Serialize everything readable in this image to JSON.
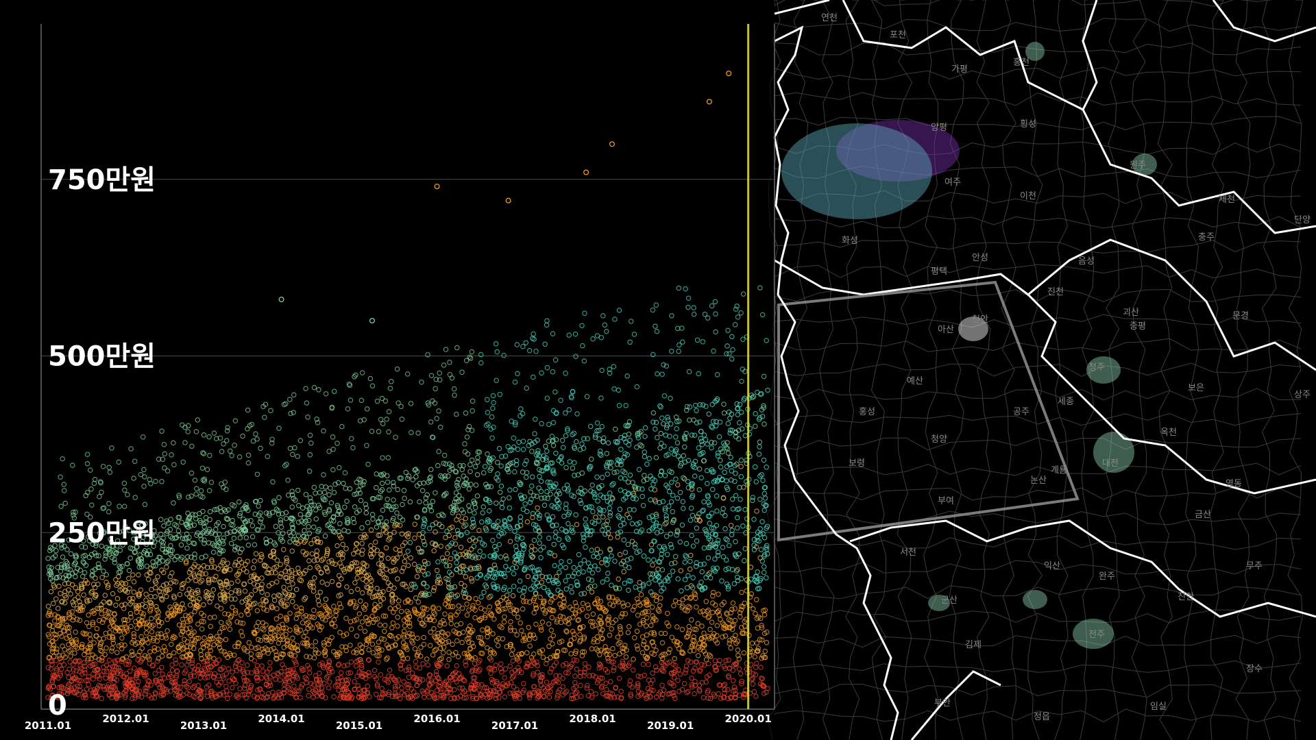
{
  "chart_data": {
    "type": "scatter",
    "title": "",
    "xlabel": "",
    "ylabel": "",
    "x_ticks": [
      "2011.01",
      "2012.01",
      "2013.01",
      "2014.01",
      "2015.01",
      "2016.01",
      "2017.01",
      "2018.01",
      "2019.01",
      "2020.01"
    ],
    "y_ticks": [
      {
        "value": 0,
        "label": "0"
      },
      {
        "value": 2500000,
        "label": "250만원"
      },
      {
        "value": 5000000,
        "label": "500만원"
      },
      {
        "value": 7500000,
        "label": "750만원"
      }
    ],
    "xlim": [
      "2011.01",
      "2020.04"
    ],
    "ylim": [
      0,
      9700000
    ],
    "grid": true,
    "marker_line_x": "2020.01",
    "marker_line_color": "#e6e14a",
    "series_colors": {
      "low": "#e0402a",
      "mid": "#f09a26",
      "upper": "#e8b04a",
      "high": "#7fcf9a",
      "recent": "#49d6c0"
    },
    "outliers": [
      {
        "x": "2019.10",
        "y": 9000000
      },
      {
        "x": "2019.07",
        "y": 8600000
      },
      {
        "x": "2018.04",
        "y": 8000000
      },
      {
        "x": "2017.12",
        "y": 7600000
      },
      {
        "x": "2016.01",
        "y": 7400000
      },
      {
        "x": "2016.12",
        "y": 7200000
      },
      {
        "x": "2014.01",
        "y": 5800000
      },
      {
        "x": "2015.03",
        "y": 5500000
      }
    ]
  },
  "map": {
    "labels": [
      "연천",
      "포천",
      "가평",
      "홍천",
      "양평",
      "횡성",
      "여주",
      "이천",
      "원주",
      "제천",
      "단양",
      "충주",
      "음성",
      "진천",
      "안성",
      "평택",
      "화성",
      "괴산",
      "문경",
      "아산",
      "천안",
      "증평",
      "청주",
      "보은",
      "상주",
      "세종",
      "공주",
      "예산",
      "홍성",
      "청양",
      "보령",
      "부여",
      "서천",
      "논산",
      "계룡",
      "대전",
      "옥천",
      "영동",
      "금산",
      "무주",
      "익산",
      "군산",
      "완주",
      "진안",
      "김제",
      "전주",
      "장수",
      "부안",
      "정읍",
      "임실"
    ]
  }
}
